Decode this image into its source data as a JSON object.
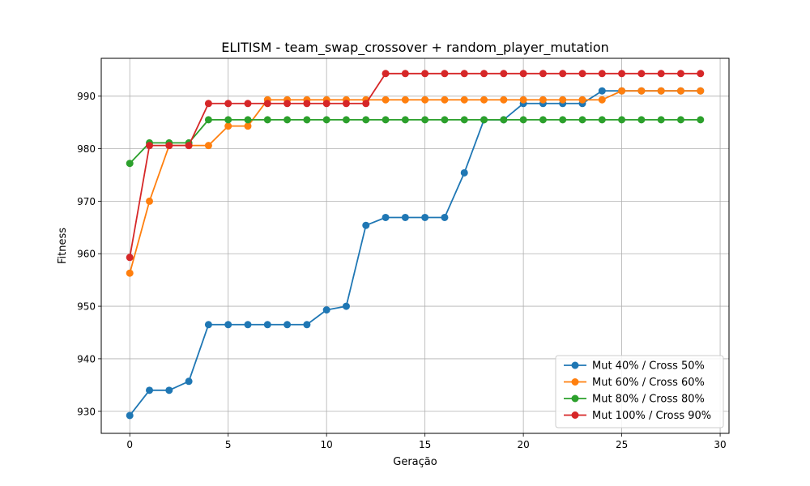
{
  "chart_data": {
    "type": "line",
    "title": "ELITISM - team_swap_crossover + random_player_mutation",
    "xlabel": "Geração",
    "ylabel": "Fitness",
    "xlim": [
      -1.45,
      30.45
    ],
    "ylim": [
      925.8,
      997.2
    ],
    "xticks": [
      0,
      5,
      10,
      15,
      20,
      25,
      30
    ],
    "yticks": [
      930,
      940,
      950,
      960,
      970,
      980,
      990
    ],
    "grid": true,
    "legend_position": "lower-right",
    "x": [
      0,
      1,
      2,
      3,
      4,
      5,
      6,
      7,
      8,
      9,
      10,
      11,
      12,
      13,
      14,
      15,
      16,
      17,
      18,
      19,
      20,
      21,
      22,
      23,
      24,
      25,
      26,
      27,
      28,
      29
    ],
    "series": [
      {
        "name": "Mut 40% / Cross 50%",
        "color": "#1f77b4",
        "values": [
          929.2,
          934.0,
          934.0,
          935.7,
          946.5,
          946.5,
          946.5,
          946.5,
          946.5,
          946.5,
          949.3,
          950.0,
          965.4,
          966.9,
          966.9,
          966.9,
          966.9,
          975.4,
          985.5,
          985.5,
          988.6,
          988.6,
          988.6,
          988.6,
          991.0,
          991.0,
          991.0,
          991.0,
          991.0,
          991.0
        ]
      },
      {
        "name": "Mut 60% / Cross 60%",
        "color": "#ff7f0e",
        "values": [
          956.3,
          970.0,
          980.6,
          980.6,
          980.6,
          984.3,
          984.3,
          989.3,
          989.3,
          989.3,
          989.3,
          989.3,
          989.3,
          989.3,
          989.3,
          989.3,
          989.3,
          989.3,
          989.3,
          989.3,
          989.3,
          989.3,
          989.3,
          989.3,
          989.3,
          991.0,
          991.0,
          991.0,
          991.0,
          991.0
        ]
      },
      {
        "name": "Mut 80% / Cross 80%",
        "color": "#2ca02c",
        "values": [
          977.2,
          981.1,
          981.1,
          981.1,
          985.5,
          985.5,
          985.5,
          985.5,
          985.5,
          985.5,
          985.5,
          985.5,
          985.5,
          985.5,
          985.5,
          985.5,
          985.5,
          985.5,
          985.5,
          985.5,
          985.5,
          985.5,
          985.5,
          985.5,
          985.5,
          985.5,
          985.5,
          985.5,
          985.5,
          985.5
        ]
      },
      {
        "name": "Mut 100% / Cross 90%",
        "color": "#d62728",
        "values": [
          959.3,
          980.6,
          980.6,
          980.6,
          988.6,
          988.6,
          988.6,
          988.6,
          988.6,
          988.6,
          988.6,
          988.6,
          988.6,
          994.3,
          994.3,
          994.3,
          994.3,
          994.3,
          994.3,
          994.3,
          994.3,
          994.3,
          994.3,
          994.3,
          994.3,
          994.3,
          994.3,
          994.3,
          994.3,
          994.3
        ]
      }
    ]
  }
}
